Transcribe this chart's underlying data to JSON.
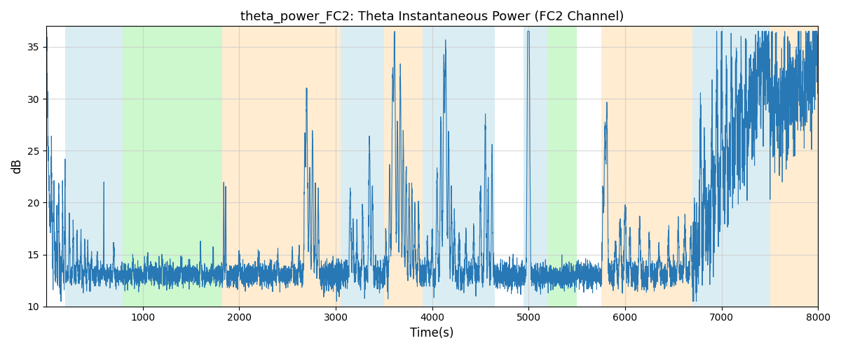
{
  "title": "theta_power_FC2: Theta Instantaneous Power (FC2 Channel)",
  "xlabel": "Time(s)",
  "ylabel": "dB",
  "xlim": [
    0,
    8000
  ],
  "ylim": [
    10,
    37
  ],
  "yticks": [
    10,
    15,
    20,
    25,
    30,
    35
  ],
  "xticks": [
    1000,
    2000,
    3000,
    4000,
    5000,
    6000,
    7000,
    8000
  ],
  "line_color": "#2878b5",
  "line_width": 0.8,
  "background_color": "#ffffff",
  "grid_color": "#cccccc",
  "colored_regions": [
    {
      "xmin": 195,
      "xmax": 790,
      "color": "#add8e6",
      "alpha": 0.45
    },
    {
      "xmin": 790,
      "xmax": 1820,
      "color": "#90ee90",
      "alpha": 0.45
    },
    {
      "xmin": 1820,
      "xmax": 3050,
      "color": "#ffd59b",
      "alpha": 0.45
    },
    {
      "xmin": 3050,
      "xmax": 3500,
      "color": "#add8e6",
      "alpha": 0.45
    },
    {
      "xmin": 3500,
      "xmax": 3900,
      "color": "#ffd59b",
      "alpha": 0.45
    },
    {
      "xmin": 3900,
      "xmax": 4650,
      "color": "#add8e6",
      "alpha": 0.45
    },
    {
      "xmin": 4650,
      "xmax": 4950,
      "color": "#ffffff",
      "alpha": 0.0
    },
    {
      "xmin": 4950,
      "xmax": 5200,
      "color": "#add8e6",
      "alpha": 0.45
    },
    {
      "xmin": 5200,
      "xmax": 5500,
      "color": "#90ee90",
      "alpha": 0.45
    },
    {
      "xmin": 5500,
      "xmax": 5750,
      "color": "#ffffff",
      "alpha": 0.0
    },
    {
      "xmin": 5750,
      "xmax": 6700,
      "color": "#ffd59b",
      "alpha": 0.45
    },
    {
      "xmin": 6700,
      "xmax": 7500,
      "color": "#add8e6",
      "alpha": 0.45
    },
    {
      "xmin": 7500,
      "xmax": 8050,
      "color": "#ffd59b",
      "alpha": 0.45
    }
  ],
  "seed": 7
}
